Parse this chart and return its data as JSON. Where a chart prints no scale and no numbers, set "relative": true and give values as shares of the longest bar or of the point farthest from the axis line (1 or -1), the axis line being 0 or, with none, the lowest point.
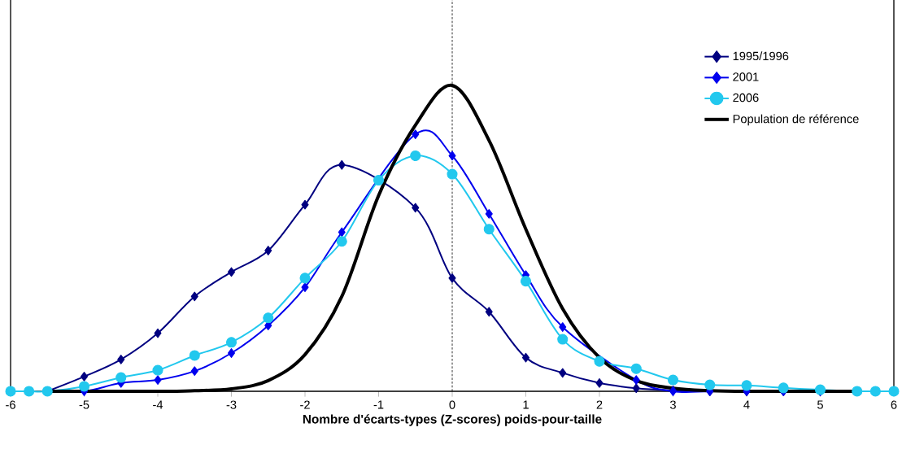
{
  "chart_data": {
    "type": "line",
    "relative": true,
    "xlabel": "Nombre d'écarts-types (Z-scores) poids-pour-taille",
    "x": [
      -5.5,
      -5,
      -4.5,
      -4,
      -3.5,
      -3,
      -2.5,
      -2,
      -1.5,
      -1,
      -0.5,
      0,
      0.5,
      1,
      1.5,
      2,
      2.5,
      3,
      3.5,
      4,
      4.5,
      5
    ],
    "xlim": [
      -6,
      6
    ],
    "xticks": [
      -6,
      -5,
      -4,
      -3,
      -2,
      -1,
      0,
      1,
      2,
      3,
      4,
      5,
      6
    ],
    "legend": "top right",
    "grid": false,
    "ref_lines": [
      {
        "axis": "x",
        "value": 0,
        "color": "#000000",
        "line_style": "dashed"
      }
    ],
    "series": [
      {
        "name": "1995/1996",
        "color": "#000080",
        "marker": "diamond",
        "values": [
          0,
          0.048,
          0.104,
          0.19,
          0.31,
          0.39,
          0.46,
          0.61,
          0.74,
          null,
          0.6,
          0.37,
          0.26,
          0.11,
          0.06,
          0.027,
          0.01,
          0.003,
          0,
          0,
          0,
          0
        ]
      },
      {
        "name": "2001",
        "color": "#0000ee",
        "marker": "diamond",
        "values": [
          0,
          0,
          0.027,
          0.037,
          0.066,
          0.125,
          0.215,
          0.34,
          0.52,
          null,
          0.84,
          0.77,
          0.58,
          0.38,
          0.21,
          null,
          0.037,
          0,
          0,
          0,
          0,
          0
        ]
      },
      {
        "name": "2006",
        "color": "#22c8ee",
        "marker": "circle",
        "x": [
          -6,
          -5.75,
          -5.5,
          -5,
          -4.5,
          -4,
          -3.5,
          -3,
          -2.5,
          -2,
          -1.5,
          -1,
          -0.5,
          0,
          0.5,
          1,
          1.5,
          2,
          2.5,
          3,
          3.5,
          4,
          4.5,
          5,
          5.5,
          5.75,
          6
        ],
        "values": [
          0,
          0,
          0,
          0.016,
          0.045,
          0.069,
          0.117,
          0.16,
          0.24,
          0.37,
          0.49,
          0.69,
          0.77,
          0.71,
          0.53,
          0.36,
          0.17,
          0.098,
          0.074,
          0.037,
          0.021,
          0.019,
          0.011,
          0.005,
          0,
          0,
          0
        ]
      },
      {
        "name": "Population de référence",
        "color": "#000000",
        "marker": "none",
        "x": [
          -5.5,
          -4,
          -3.5,
          -3,
          -2.5,
          -2,
          -1.5,
          -1,
          -0.5,
          0,
          0.5,
          1,
          1.5,
          2,
          2.5,
          3,
          3.5,
          4,
          5.5
        ],
        "values": [
          0,
          0,
          0.002,
          0.008,
          0.035,
          0.12,
          0.31,
          0.64,
          0.87,
          1,
          0.82,
          0.53,
          0.27,
          0.11,
          0.035,
          0.01,
          0.002,
          0,
          0
        ]
      }
    ]
  }
}
